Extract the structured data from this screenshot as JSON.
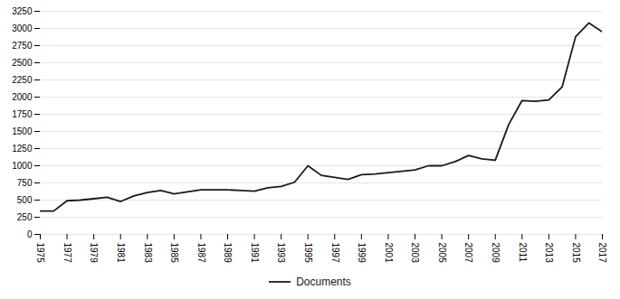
{
  "chart_data": {
    "type": "line",
    "x": [
      1975,
      1976,
      1977,
      1978,
      1979,
      1980,
      1981,
      1982,
      1983,
      1984,
      1985,
      1986,
      1987,
      1988,
      1989,
      1990,
      1991,
      1992,
      1993,
      1994,
      1995,
      1996,
      1997,
      1998,
      1999,
      2000,
      2001,
      2002,
      2003,
      2004,
      2005,
      2006,
      2007,
      2008,
      2009,
      2010,
      2011,
      2012,
      2013,
      2014,
      2015,
      2016,
      2017
    ],
    "series": [
      {
        "name": "Documents",
        "color": "#1a1a1a",
        "values": [
          340,
          340,
          490,
          500,
          520,
          540,
          480,
          560,
          610,
          640,
          590,
          620,
          650,
          650,
          650,
          640,
          630,
          680,
          700,
          760,
          1000,
          860,
          830,
          800,
          870,
          880,
          900,
          920,
          940,
          1000,
          1000,
          1060,
          1150,
          1100,
          1080,
          1600,
          1950,
          1940,
          1960,
          2150,
          2880,
          3080,
          2950
        ]
      }
    ],
    "xlim": [
      1975,
      2017
    ],
    "ylim": [
      0,
      3250
    ],
    "xticks": [
      1975,
      1977,
      1979,
      1981,
      1983,
      1985,
      1987,
      1989,
      1991,
      1993,
      1995,
      1997,
      1999,
      2001,
      2003,
      2005,
      2007,
      2009,
      2011,
      2013,
      2015,
      2017
    ],
    "yticks": [
      0,
      250,
      500,
      750,
      1000,
      1250,
      1500,
      1750,
      2000,
      2250,
      2500,
      2750,
      3000,
      3250
    ],
    "grid": true,
    "legend": "bottom"
  }
}
